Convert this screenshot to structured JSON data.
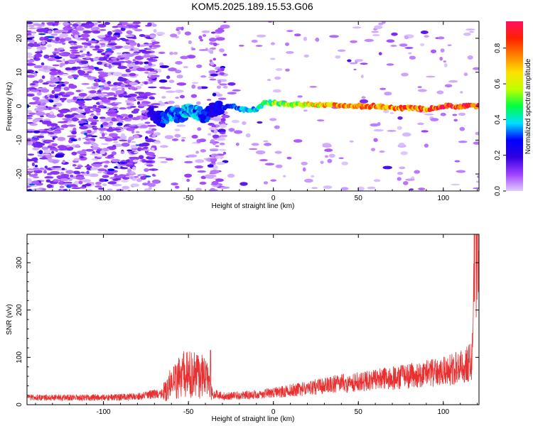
{
  "title": "KOM5.2025.189.15.53.G06",
  "chart_data": [
    {
      "type": "heatmap",
      "xlabel": "Height of straight line (km)",
      "ylabel": "Frequency (Hz)",
      "xlim": [
        -145,
        121
      ],
      "ylim": [
        -25,
        25
      ],
      "xticks": [
        -100,
        -50,
        0,
        50,
        100
      ],
      "yticks": [
        -20,
        -10,
        0,
        10,
        20
      ],
      "colorbar": {
        "label": "Normalized spectral amplitude",
        "range": [
          0,
          0.95
        ],
        "ticks": [
          0.0,
          0.2,
          0.4,
          0.6,
          0.8
        ],
        "tick_labels": [
          "0.0",
          "0.2",
          "0.4",
          "0.6",
          "0.8"
        ],
        "colormap": [
          "#e0ccff",
          "#a040ff",
          "#3000e0",
          "#0000ff",
          "#00e0ff",
          "#00ff40",
          "#c0ff00",
          "#ffe000",
          "#ff8000",
          "#ff2000",
          "#ff1060"
        ]
      },
      "noise": [
        {
          "x": [
            -145,
            -70
          ],
          "y": [
            -25,
            25
          ],
          "density": 0.55,
          "amp": 0.15
        },
        {
          "x": [
            -70,
            -30
          ],
          "y": [
            -25,
            25
          ],
          "density": 0.12,
          "amp": 0.1
        },
        {
          "x": [
            -38,
            -28
          ],
          "y": [
            -25,
            25
          ],
          "density": 0.3,
          "amp": 0.12
        },
        {
          "x": [
            -30,
            121
          ],
          "y": [
            -25,
            25
          ],
          "density": 0.04,
          "amp": 0.08
        }
      ],
      "ridge": [
        {
          "x": -72,
          "y": -2,
          "amp": 0.2
        },
        {
          "x": -65,
          "y": -4,
          "amp": 0.3
        },
        {
          "x": -60,
          "y": -2,
          "amp": 0.35
        },
        {
          "x": -55,
          "y": -3,
          "amp": 0.3
        },
        {
          "x": -50,
          "y": -1,
          "amp": 0.4
        },
        {
          "x": -45,
          "y": -2,
          "amp": 0.35
        },
        {
          "x": -40,
          "y": -3,
          "amp": 0.3
        },
        {
          "x": -35,
          "y": -1,
          "amp": 0.25
        },
        {
          "x": -25,
          "y": 0,
          "amp": 0.3
        },
        {
          "x": -18,
          "y": -1,
          "amp": 0.35
        },
        {
          "x": -10,
          "y": -1,
          "amp": 0.4
        },
        {
          "x": -5,
          "y": 1,
          "amp": 0.5
        },
        {
          "x": 0,
          "y": 1,
          "amp": 0.55
        },
        {
          "x": 10,
          "y": 0.5,
          "amp": 0.6
        },
        {
          "x": 20,
          "y": 0.5,
          "amp": 0.65
        },
        {
          "x": 30,
          "y": 0.5,
          "amp": 0.7
        },
        {
          "x": 40,
          "y": 0,
          "amp": 0.75
        },
        {
          "x": 50,
          "y": 0,
          "amp": 0.75
        },
        {
          "x": 60,
          "y": 0,
          "amp": 0.8
        },
        {
          "x": 70,
          "y": -0.5,
          "amp": 0.8
        },
        {
          "x": 80,
          "y": -0.5,
          "amp": 0.8
        },
        {
          "x": 90,
          "y": -1,
          "amp": 0.8
        },
        {
          "x": 100,
          "y": 0,
          "amp": 0.85
        },
        {
          "x": 110,
          "y": 0,
          "amp": 0.9
        },
        {
          "x": 121,
          "y": 0,
          "amp": 0.95
        }
      ]
    },
    {
      "type": "line",
      "xlabel": "Height of straight line (km)",
      "ylabel": "SNR (v/v)",
      "xlim": [
        -145,
        121
      ],
      "ylim": [
        0,
        360
      ],
      "xticks": [
        -100,
        -50,
        0,
        50,
        100
      ],
      "yticks": [
        0,
        100,
        200,
        300
      ],
      "color": "#e83030",
      "envelope": [
        {
          "x": -145,
          "y": 15
        },
        {
          "x": -100,
          "y": 15
        },
        {
          "x": -80,
          "y": 17
        },
        {
          "x": -65,
          "y": 25
        },
        {
          "x": -60,
          "y": 45
        },
        {
          "x": -55,
          "y": 60
        },
        {
          "x": -50,
          "y": 65
        },
        {
          "x": -45,
          "y": 60
        },
        {
          "x": -40,
          "y": 62
        },
        {
          "x": -37,
          "y": 25
        },
        {
          "x": -30,
          "y": 18
        },
        {
          "x": -20,
          "y": 20
        },
        {
          "x": -10,
          "y": 22
        },
        {
          "x": 0,
          "y": 25
        },
        {
          "x": 20,
          "y": 35
        },
        {
          "x": 40,
          "y": 45
        },
        {
          "x": 60,
          "y": 52
        },
        {
          "x": 80,
          "y": 60
        },
        {
          "x": 100,
          "y": 70
        },
        {
          "x": 110,
          "y": 80
        },
        {
          "x": 117,
          "y": 92
        },
        {
          "x": 118,
          "y": 300
        },
        {
          "x": 119,
          "y": 320
        },
        {
          "x": 120,
          "y": 330
        },
        {
          "x": 121,
          "y": 320
        }
      ],
      "peaks": [
        {
          "x": -37,
          "y": 115
        },
        {
          "x": 119,
          "y": 360
        }
      ]
    }
  ]
}
